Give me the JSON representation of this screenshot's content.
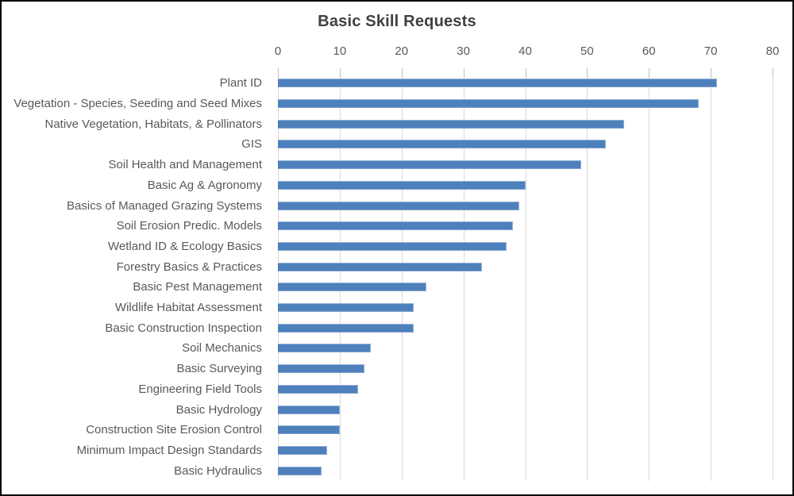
{
  "chart_data": {
    "type": "bar",
    "orientation": "horizontal",
    "title": "Basic Skill Requests",
    "categories": [
      "Plant ID",
      "Vegetation - Species, Seeding and Seed Mixes",
      "Native Vegetation, Habitats, & Pollinators",
      "GIS",
      "Soil Health and Management",
      "Basic Ag & Agronomy",
      "Basics of Managed Grazing Systems",
      "Soil Erosion Predic. Models",
      "Wetland ID & Ecology Basics",
      "Forestry Basics & Practices",
      "Basic Pest Management",
      "Wildlife Habitat Assessment",
      "Basic Construction Inspection",
      "Soil Mechanics",
      "Basic Surveying",
      "Engineering Field Tools",
      "Basic Hydrology",
      "Construction Site Erosion Control",
      "Minimum Impact Design Standards",
      "Basic Hydraulics"
    ],
    "values": [
      71,
      68,
      56,
      53,
      49,
      40,
      39,
      38,
      37,
      33,
      24,
      22,
      22,
      15,
      14,
      13,
      10,
      10,
      8,
      7
    ],
    "xlabel": "",
    "ylabel": "",
    "xlim": [
      0,
      80
    ],
    "xticks": [
      0,
      10,
      20,
      30,
      40,
      50,
      60,
      70,
      80
    ],
    "axis_position": "top",
    "grid": "vertical-major",
    "legend": false,
    "colors": {
      "bar": "#4e80bc",
      "bar_edge": "#95b3d7",
      "gridline": "#d9d9d9",
      "tick_mark": "#c0c0c0",
      "title": "#404040",
      "label": "#595959",
      "frame_border": "#000000",
      "background": "#ffffff"
    }
  }
}
